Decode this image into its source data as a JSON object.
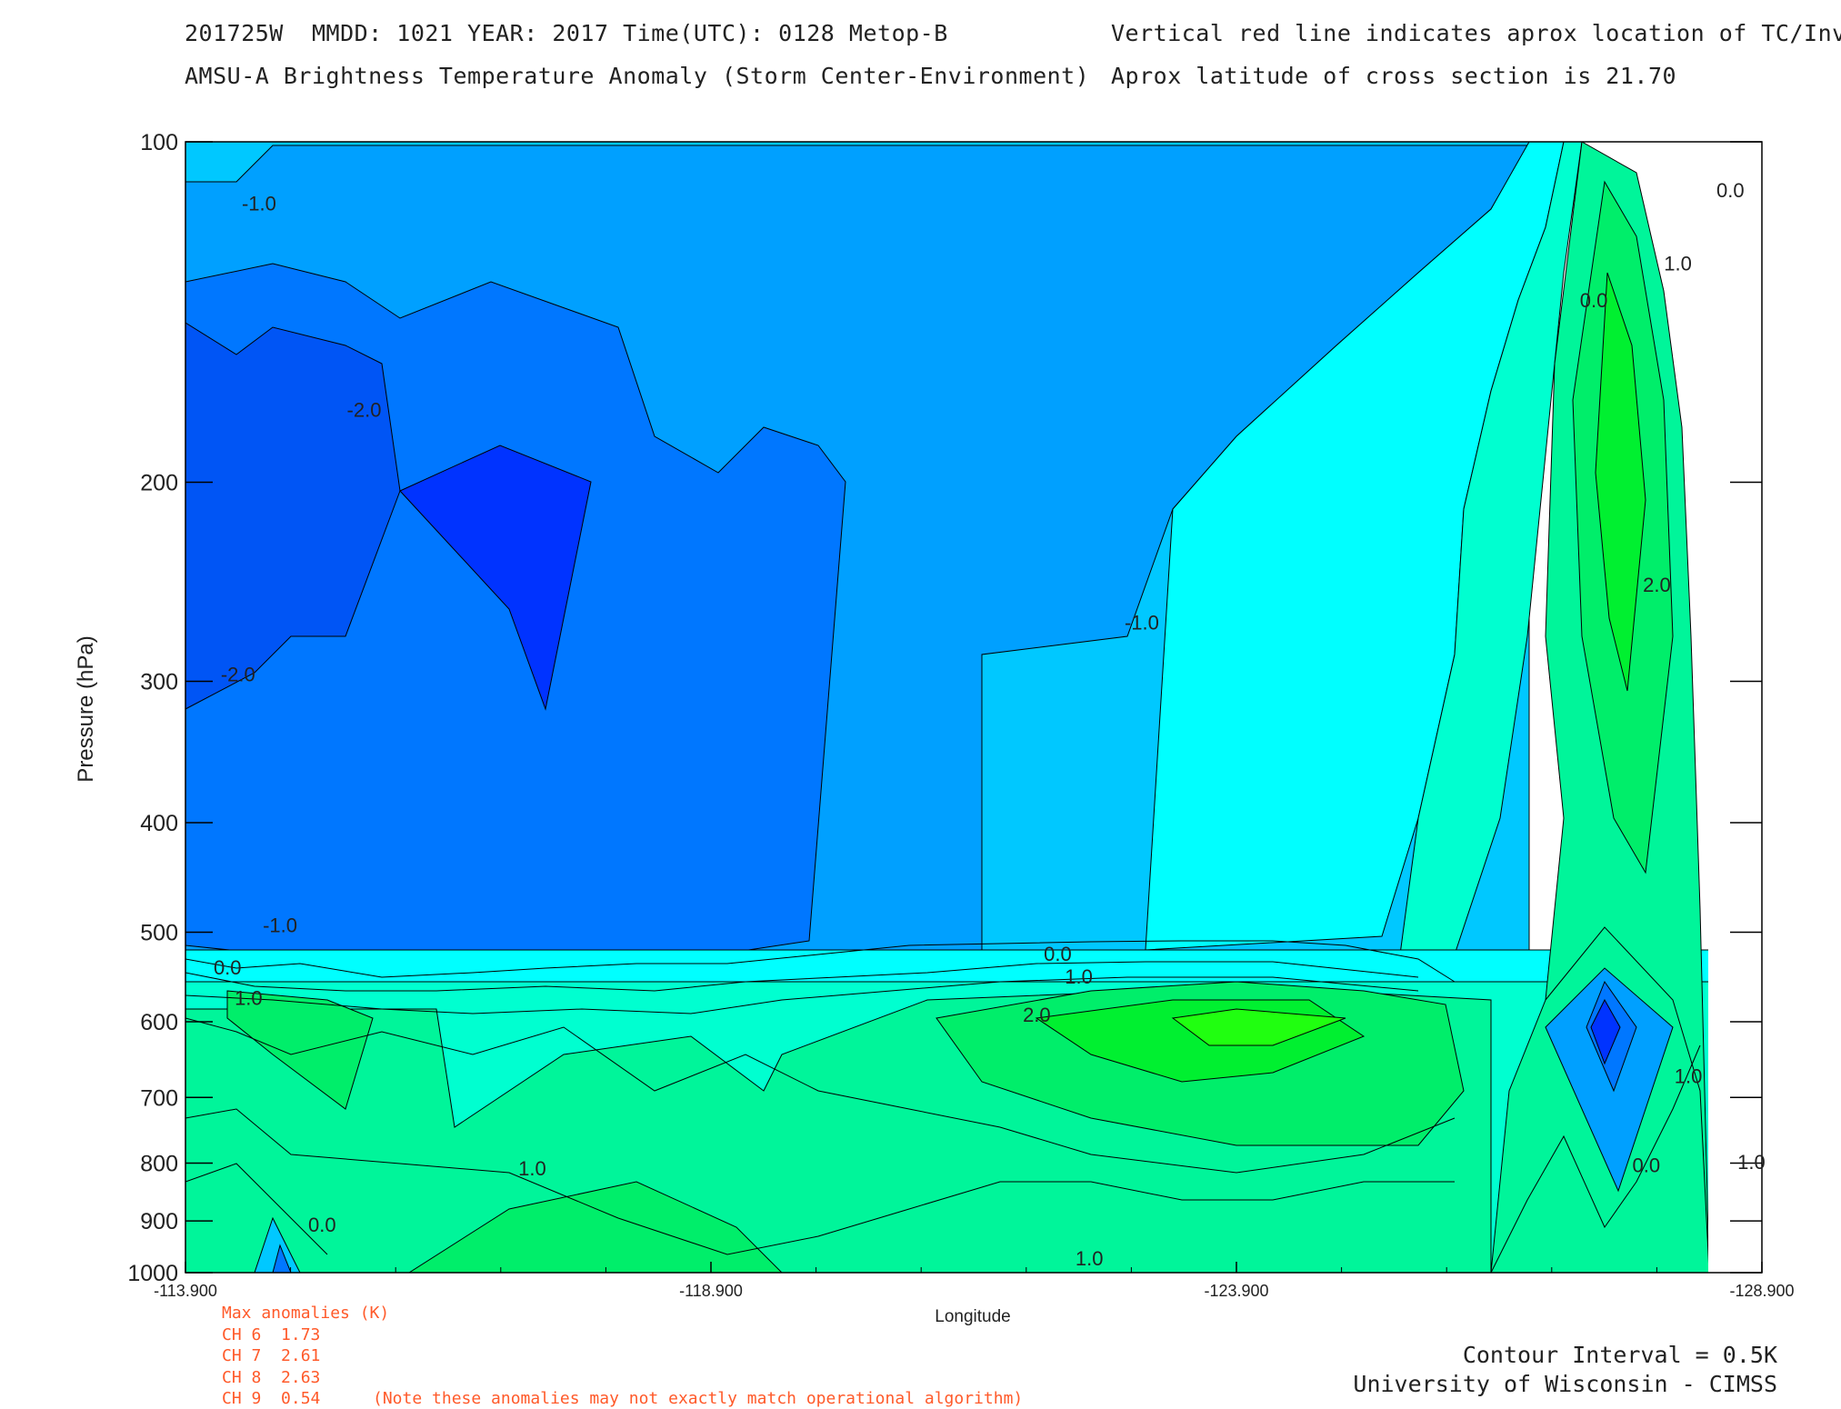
{
  "header": {
    "line1_left": "201725W  MMDD: 1021 YEAR: 2017 Time(UTC): 0128 Metop-B",
    "line1_right": "Vertical red line indicates aprox location of TC/Invest",
    "line2_left": "AMSU-A Brightness Temperature Anomaly (Storm Center-Environment)",
    "line2_right": "Aprox latitude of cross section is 21.70"
  },
  "chart_data": {
    "type": "contour",
    "xlabel": "Longitude",
    "ylabel": "Pressure (hPa)",
    "xlim": [
      -113.9,
      -128.9
    ],
    "ylim": [
      1000,
      100
    ],
    "y_scale": "log",
    "x_ticks": [
      "-113.900",
      "-118.900",
      "-123.900",
      "-128.900"
    ],
    "y_ticks": [
      100,
      200,
      300,
      400,
      500,
      600,
      700,
      800,
      900,
      1000
    ],
    "contour_interval": 0.5,
    "colors": {
      "neg2.5": "#0033ff",
      "neg2": "#0055f5",
      "neg1.5": "#0077ff",
      "neg1": "#00a0ff",
      "neg0.5": "#00c8ff",
      "zero": "#00ffff",
      "pos0.5": "#00ffd0",
      "pos1": "#00f59a",
      "pos1.5": "#00ee6a",
      "pos2": "#00f030",
      "pos2.5": "#20ff10"
    },
    "contour_labels": [
      {
        "text": "-1.0",
        "lon": -114.6,
        "p": 115
      },
      {
        "text": "-2.0",
        "lon": -115.6,
        "p": 175
      },
      {
        "text": "-2.0",
        "lon": -114.4,
        "p": 300
      },
      {
        "text": "-1.0",
        "lon": -123.0,
        "p": 270
      },
      {
        "text": "0.0",
        "lon": -127.3,
        "p": 140
      },
      {
        "text": "1.0",
        "lon": -128.1,
        "p": 130
      },
      {
        "text": "0.0",
        "lon": -128.6,
        "p": 112
      },
      {
        "text": "2.0",
        "lon": -127.9,
        "p": 250
      },
      {
        "text": "-1.0",
        "lon": -114.8,
        "p": 500
      },
      {
        "text": "0.0",
        "lon": -114.3,
        "p": 545
      },
      {
        "text": "1.0",
        "lon": -114.5,
        "p": 580
      },
      {
        "text": "0.0",
        "lon": -122.2,
        "p": 530
      },
      {
        "text": "1.0",
        "lon": -122.4,
        "p": 555
      },
      {
        "text": "2.0",
        "lon": -122.0,
        "p": 600
      },
      {
        "text": "1.0",
        "lon": -117.2,
        "p": 820
      },
      {
        "text": "0.0",
        "lon": -115.2,
        "p": 920
      },
      {
        "text": "1.0",
        "lon": -122.5,
        "p": 985
      },
      {
        "text": "1.0",
        "lon": -128.2,
        "p": 680
      },
      {
        "text": "0.0",
        "lon": -127.8,
        "p": 815
      },
      {
        "text": "1.0",
        "lon": -128.8,
        "p": 810
      }
    ]
  },
  "anomalies": {
    "title": "Max anomalies (K)",
    "rows": [
      "CH 6  1.73",
      "CH 7  2.61",
      "CH 8  2.63",
      "CH 9  0.54"
    ],
    "note": "(Note these anomalies may not exactly match operational algorithm)"
  },
  "footer": {
    "interval": "Contour Interval = 0.5K",
    "credit": "University of Wisconsin - CIMSS"
  }
}
